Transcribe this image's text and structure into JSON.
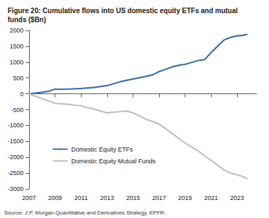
{
  "chart_data": {
    "type": "line",
    "title": "Figure 20: Cumulative flows into US domestic equity ETFs and mutual funds ($Bn)",
    "source": "Source: J.P. Morgan Quantitative and Derivatives Strategy, EPFR.",
    "xlim": [
      2007,
      2024.5
    ],
    "xticks": [
      2007,
      2009,
      2011,
      2013,
      2015,
      2017,
      2019,
      2021,
      2023
    ],
    "ylim": [
      -3000,
      2000
    ],
    "yticks": [
      -3000,
      -2500,
      -2000,
      -1500,
      -1000,
      -500,
      0,
      500,
      1000,
      1500,
      2000
    ],
    "grid": false,
    "legend": "lower left",
    "series": [
      {
        "name": "Domestic Equity ETFs",
        "color": "#3f6fa6",
        "x": [
          2007,
          2008,
          2008.5,
          2009,
          2009.5,
          2010,
          2011,
          2012,
          2013,
          2014,
          2015,
          2016,
          2016.5,
          2017,
          2018,
          2018.5,
          2019,
          2020,
          2020.5,
          2021,
          2021.5,
          2022,
          2022.5,
          2023,
          2023.5,
          2023.8
        ],
        "values": [
          0,
          50,
          80,
          150,
          140,
          150,
          170,
          200,
          260,
          380,
          470,
          550,
          600,
          700,
          850,
          900,
          930,
          1050,
          1080,
          1300,
          1500,
          1700,
          1780,
          1830,
          1850,
          1880
        ]
      },
      {
        "name": "Domestic Equity Mutual Funds",
        "color": "#c0c0c0",
        "x": [
          2007,
          2008,
          2009,
          2010,
          2011,
          2012,
          2013,
          2014,
          2014.5,
          2015,
          2016,
          2017,
          2017.5,
          2018,
          2019,
          2020,
          2021,
          2021.5,
          2022,
          2022.5,
          2023,
          2023.5,
          2023.8
        ],
        "values": [
          0,
          -150,
          -300,
          -330,
          -380,
          -480,
          -600,
          -560,
          -540,
          -600,
          -800,
          -950,
          -1100,
          -1250,
          -1550,
          -1800,
          -2100,
          -2250,
          -2400,
          -2500,
          -2550,
          -2620,
          -2680
        ]
      }
    ]
  }
}
